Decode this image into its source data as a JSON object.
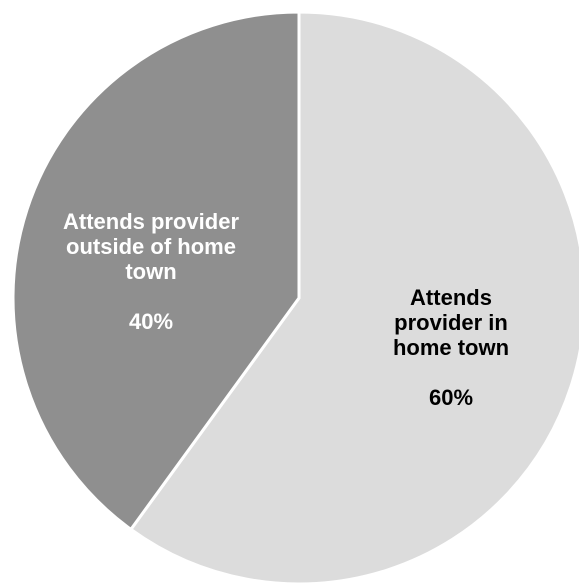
{
  "chart_data": {
    "type": "pie",
    "categories": [
      "Attends provider in home town",
      "Attends provider outside of home town"
    ],
    "values": [
      60,
      40
    ],
    "display_labels": [
      "Attends\nprovider in\nhome town",
      "Attends provider\noutside of home\ntown"
    ],
    "percent_labels": [
      "60%",
      "40%"
    ],
    "colors": [
      "#dcdcdc",
      "#8f8f8f"
    ],
    "label_colors": [
      "#000000",
      "#ffffff"
    ],
    "start_angle": "12 o'clock",
    "direction": "clockwise"
  }
}
